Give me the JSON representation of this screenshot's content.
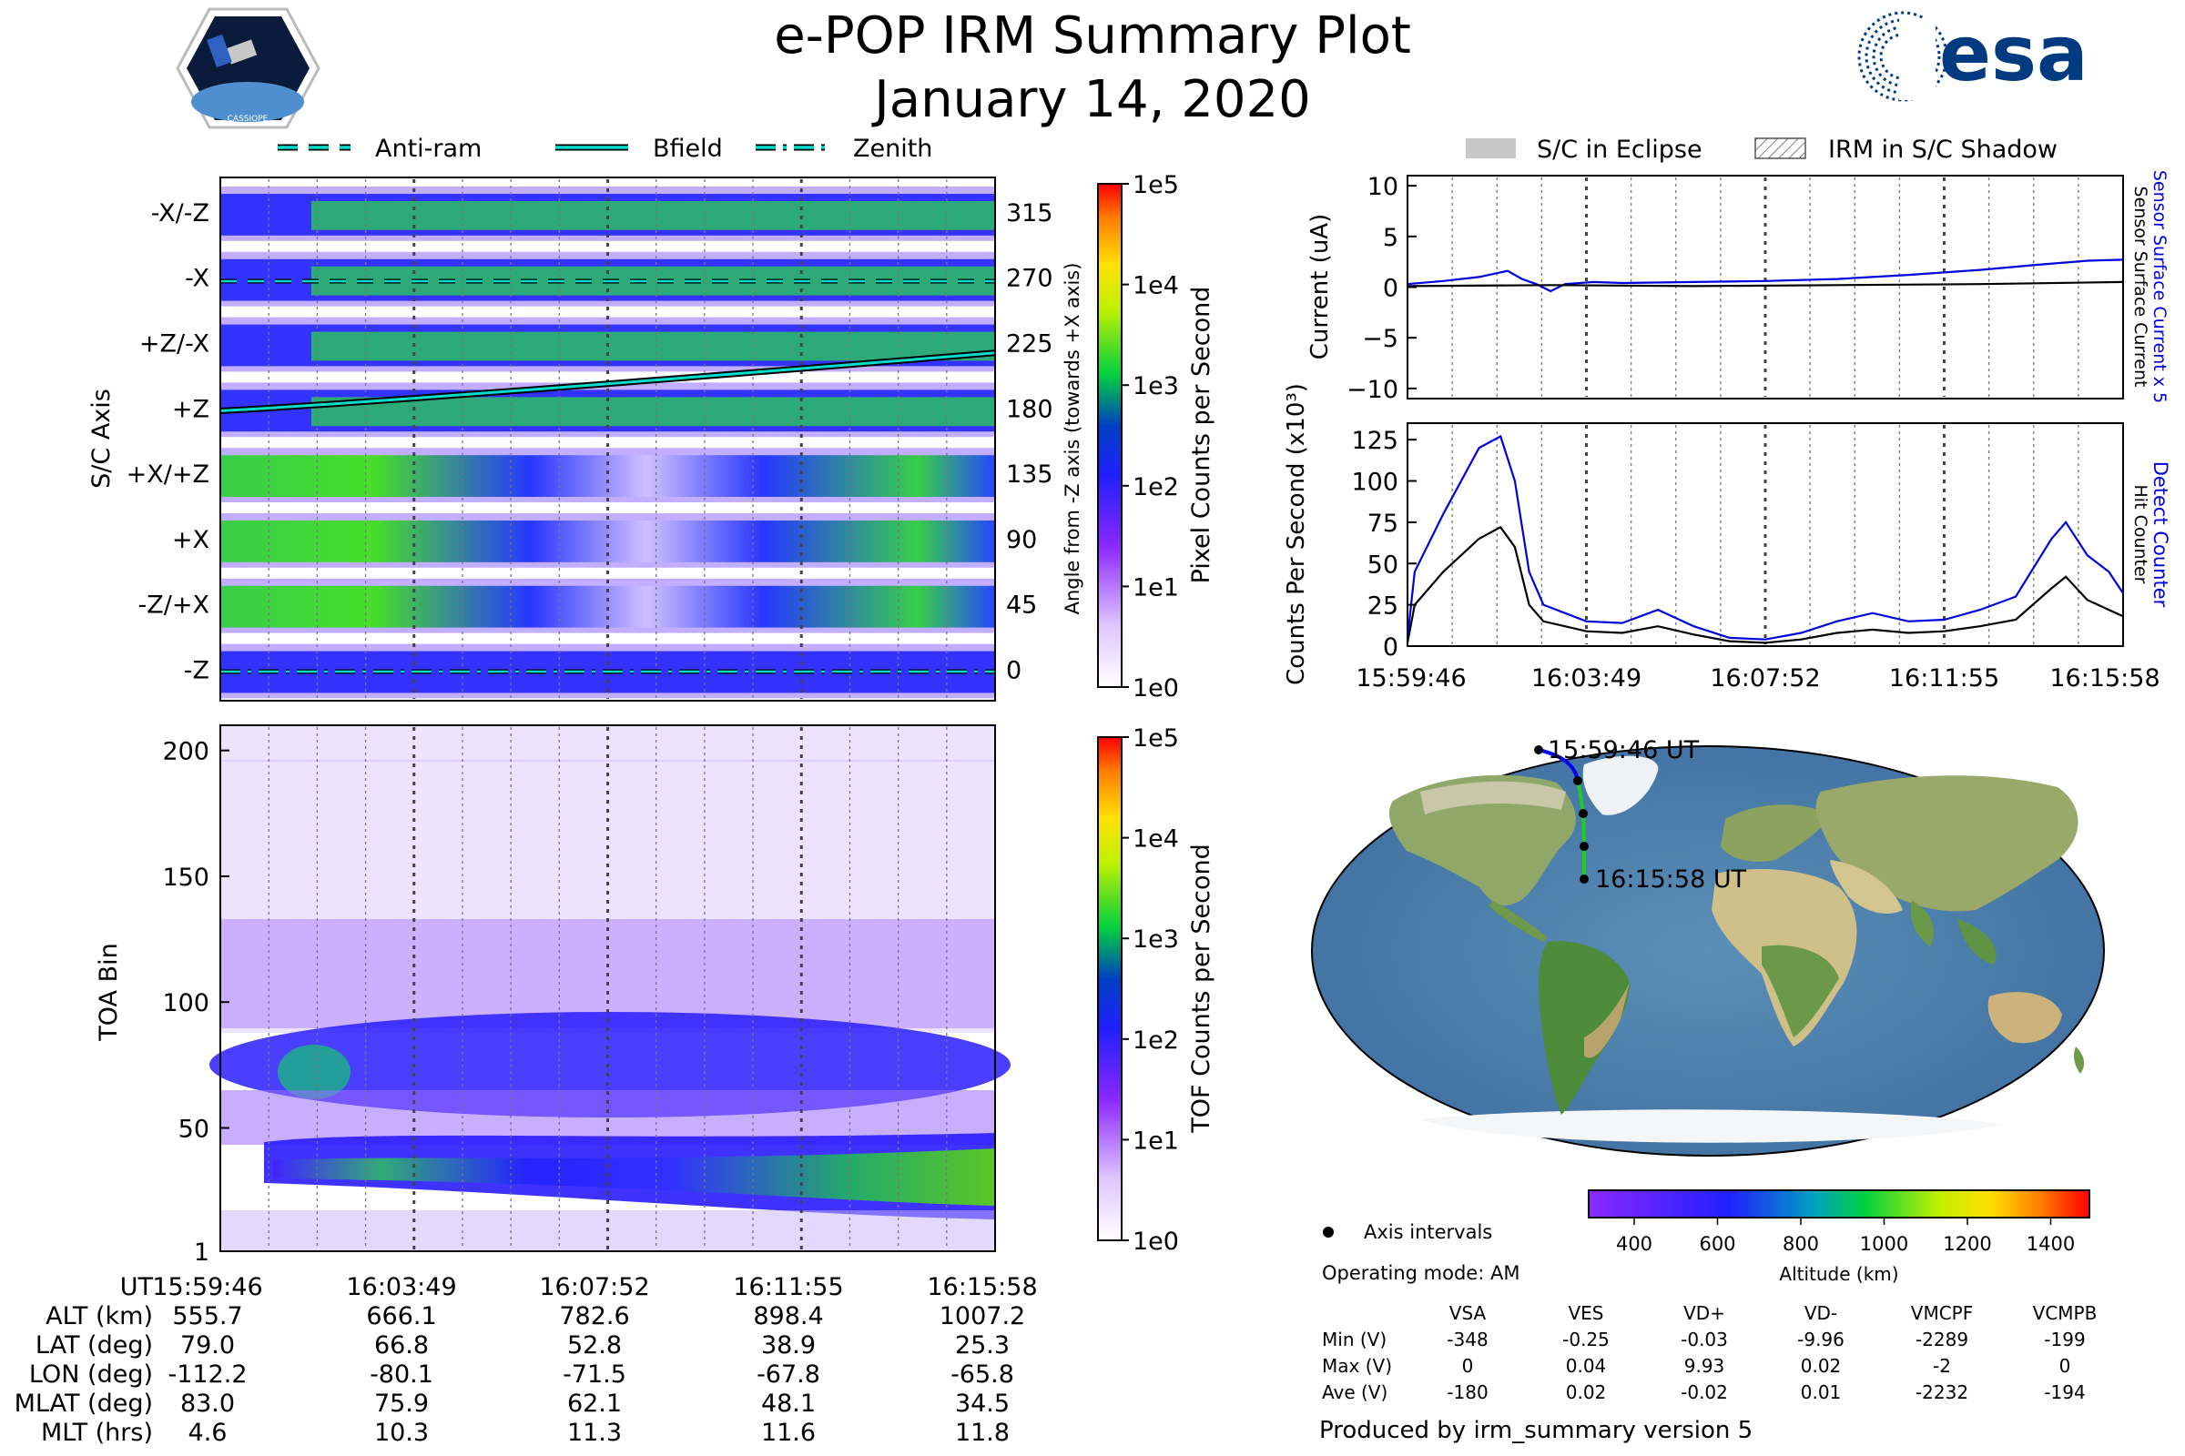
{
  "title": {
    "line1": "e-POP IRM Summary Plot",
    "line2": "January 14, 2020"
  },
  "logos": {
    "left_text": "CASSIOPE",
    "right_text": "esa"
  },
  "colors": {
    "sensor_blue": "#0000dd",
    "track_blue": "#0000ff",
    "track_green": "#22cc22",
    "dash_cyan": "#00ccbb",
    "eclipse_grey": "#c8c8c8",
    "grid_grey": "#555555"
  },
  "legend_top_left": [
    {
      "label": "Anti-ram",
      "style": "dashed"
    },
    {
      "label": "Bfield",
      "style": "solid"
    },
    {
      "label": "Zenith",
      "style": "dashdot"
    }
  ],
  "legend_top_right": [
    {
      "label": "S/C in Eclipse",
      "style": "filled"
    },
    {
      "label": "IRM in S/C Shadow",
      "style": "hatched"
    }
  ],
  "time_ticks": [
    "15:59:46",
    "16:03:49",
    "16:07:52",
    "16:11:55",
    "16:15:58"
  ],
  "ephemeris": {
    "labels": [
      "UT",
      "ALT (km)",
      "LAT (deg)",
      "LON (deg)",
      "MLAT (deg)",
      "MLT (hrs)"
    ],
    "rows": [
      [
        "15:59:46",
        "16:03:49",
        "16:07:52",
        "16:11:55",
        "16:15:58"
      ],
      [
        "555.7",
        "666.1",
        "782.6",
        "898.4",
        "1007.2"
      ],
      [
        "79.0",
        "66.8",
        "52.8",
        "38.9",
        "25.3"
      ],
      [
        "-112.2",
        "-80.1",
        "-71.5",
        "-67.8",
        "-65.8"
      ],
      [
        "83.0",
        "75.9",
        "62.1",
        "48.1",
        "34.5"
      ],
      [
        "4.6",
        "10.3",
        "11.3",
        "11.6",
        "11.8"
      ]
    ]
  },
  "chart_data": [
    {
      "type": "heatmap",
      "name": "pixel-counts",
      "ylabel": "S/C Axis",
      "y_left_labels": [
        "-X/-Z",
        "-X",
        "+Z/-X",
        "+Z",
        "+X/+Z",
        "+X",
        "-Z/+X",
        "-Z"
      ],
      "y_right_ticks": [
        "315",
        "270",
        "225",
        "180",
        "135",
        "90",
        "45",
        "0"
      ],
      "y_right_label": "Angle from -Z axis (towards +X axis)",
      "colorbar": {
        "label": "Pixel Counts per Second",
        "ticks": [
          "1e5",
          "1e4",
          "1e3",
          "1e2",
          "1e1",
          "1e0"
        ]
      },
      "overlay_bfield_angle": {
        "start": 178,
        "end": 218
      }
    },
    {
      "type": "heatmap",
      "name": "toa-counts",
      "ylabel": "TOA Bin",
      "yticks": [
        "200",
        "150",
        "100",
        "50",
        "1"
      ],
      "ylim": [
        1,
        210
      ],
      "colorbar": {
        "label": "TOF Counts per Second",
        "ticks": [
          "1e5",
          "1e4",
          "1e3",
          "1e2",
          "1e1",
          "1e0"
        ]
      }
    },
    {
      "type": "line",
      "name": "current",
      "ylabel": "Current (uA)",
      "yticks": [
        "10",
        "5",
        "0",
        "−5",
        "−10"
      ],
      "ylim": [
        -11,
        11
      ],
      "right_labels": [
        "Sensor Surface Current x 5",
        "Sensor Surface Current"
      ],
      "series": [
        {
          "name": "Sensor Surface Current x 5",
          "color": "blue",
          "x": [
            0,
            0.05,
            0.1,
            0.14,
            0.16,
            0.18,
            0.2,
            0.22,
            0.26,
            0.3,
            0.4,
            0.5,
            0.6,
            0.7,
            0.8,
            0.88,
            0.95,
            1.0
          ],
          "values": [
            0.3,
            0.6,
            1.0,
            1.6,
            0.8,
            0.3,
            -0.4,
            0.3,
            0.5,
            0.4,
            0.5,
            0.6,
            0.8,
            1.2,
            1.7,
            2.2,
            2.6,
            2.7
          ]
        },
        {
          "name": "Sensor Surface Current",
          "color": "black",
          "x": [
            0,
            0.2,
            0.4,
            0.6,
            0.8,
            1.0
          ],
          "values": [
            0.1,
            0.2,
            0.1,
            0.2,
            0.3,
            0.5
          ]
        }
      ]
    },
    {
      "type": "line",
      "name": "counts",
      "ylabel": "Counts Per Second (x10³)",
      "yticks": [
        "125",
        "100",
        "75",
        "50",
        "25",
        "0"
      ],
      "ylim": [
        0,
        135
      ],
      "right_labels": [
        "Detect Counter",
        "Hit Counter"
      ],
      "series": [
        {
          "name": "Detect Counter",
          "color": "blue",
          "x": [
            0,
            0.01,
            0.05,
            0.1,
            0.13,
            0.15,
            0.17,
            0.19,
            0.22,
            0.25,
            0.3,
            0.35,
            0.4,
            0.45,
            0.5,
            0.55,
            0.6,
            0.65,
            0.7,
            0.75,
            0.8,
            0.85,
            0.9,
            0.92,
            0.95,
            0.98,
            1.0
          ],
          "values": [
            5,
            45,
            80,
            120,
            127,
            100,
            45,
            25,
            20,
            15,
            14,
            22,
            12,
            5,
            4,
            8,
            15,
            20,
            15,
            16,
            22,
            30,
            65,
            75,
            55,
            45,
            32
          ]
        },
        {
          "name": "Hit Counter",
          "color": "black",
          "x": [
            0,
            0.01,
            0.05,
            0.1,
            0.13,
            0.15,
            0.17,
            0.19,
            0.22,
            0.25,
            0.3,
            0.35,
            0.4,
            0.45,
            0.5,
            0.55,
            0.6,
            0.65,
            0.7,
            0.75,
            0.8,
            0.85,
            0.9,
            0.92,
            0.95,
            0.98,
            1.0
          ],
          "values": [
            2,
            25,
            45,
            65,
            72,
            60,
            25,
            15,
            12,
            9,
            8,
            12,
            7,
            3,
            2,
            4,
            8,
            10,
            8,
            9,
            12,
            16,
            35,
            42,
            28,
            22,
            18
          ]
        }
      ]
    }
  ],
  "map": {
    "track_start_label": "15:59:46 UT",
    "track_end_label": "16:15:58 UT"
  },
  "altitude_colorbar": {
    "label": "Altitude (km)",
    "ticks": [
      "400",
      "600",
      "800",
      "1000",
      "1200",
      "1400"
    ]
  },
  "info": {
    "axis_intervals": "Axis intervals",
    "operating_mode": "Operating mode: AM",
    "produced_by": "Produced by irm_summary version 5"
  },
  "voltage_table": {
    "columns": [
      "VSA",
      "VES",
      "VD+",
      "VD-",
      "VMCPF",
      "VCMPB"
    ],
    "rows": [
      {
        "label": "Min (V)",
        "values": [
          "-348",
          "-0.25",
          "-0.03",
          "-9.96",
          "-2289",
          "-199"
        ]
      },
      {
        "label": "Max (V)",
        "values": [
          "0",
          "0.04",
          "9.93",
          "0.02",
          "-2",
          "0"
        ]
      },
      {
        "label": "Ave (V)",
        "values": [
          "-180",
          "0.02",
          "-0.02",
          "0.01",
          "-2232",
          "-194"
        ]
      }
    ]
  }
}
